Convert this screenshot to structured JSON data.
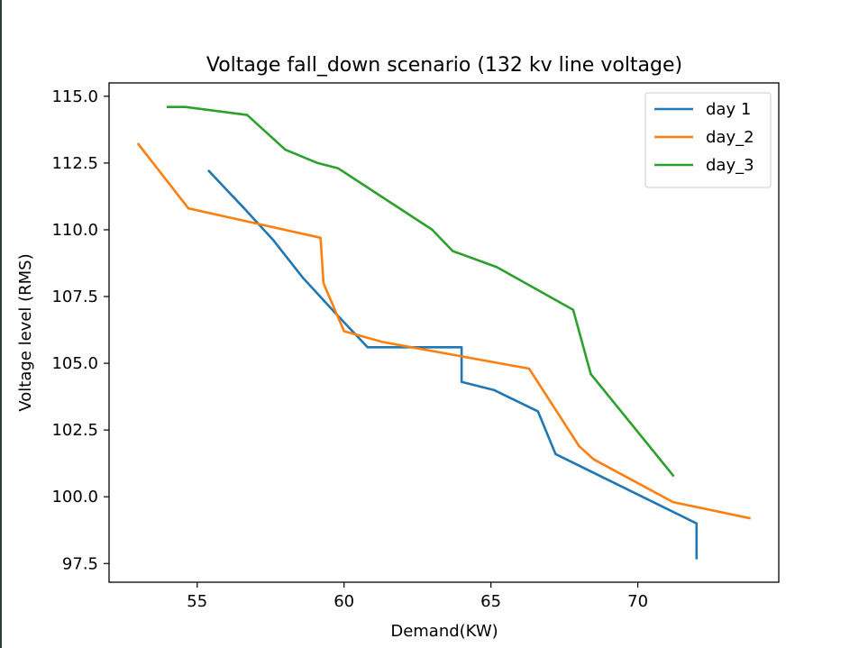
{
  "chart_data": {
    "type": "line",
    "title": "Voltage fall_down scenario (132 kv line voltage)",
    "xlabel": "Demand(KW)",
    "ylabel": "Voltage level (RMS)",
    "xlim": [
      52.0,
      74.8
    ],
    "ylim": [
      96.8,
      115.5
    ],
    "xticks": [
      55,
      60,
      65,
      70
    ],
    "yticks": [
      97.5,
      100.0,
      102.5,
      105.0,
      107.5,
      110.0,
      112.5,
      115.0
    ],
    "grid": false,
    "legend": "top-right",
    "series": [
      {
        "name": "day 1",
        "color": "#1f77b4",
        "points": [
          [
            55.4,
            112.2
          ],
          [
            56.6,
            110.8
          ],
          [
            57.6,
            109.6
          ],
          [
            58.6,
            108.2
          ],
          [
            59.6,
            107.0
          ],
          [
            60.8,
            105.6
          ],
          [
            64.0,
            105.6
          ],
          [
            64.0,
            104.3
          ],
          [
            65.1,
            104.0
          ],
          [
            66.6,
            103.2
          ],
          [
            67.2,
            101.6
          ],
          [
            72.0,
            99.0
          ],
          [
            72.0,
            97.7
          ]
        ]
      },
      {
        "name": "day_2",
        "color": "#ff7f0e",
        "points": [
          [
            53.0,
            113.2
          ],
          [
            54.7,
            110.8
          ],
          [
            59.2,
            109.7
          ],
          [
            59.3,
            108.0
          ],
          [
            60.0,
            106.2
          ],
          [
            61.3,
            105.8
          ],
          [
            66.3,
            104.8
          ],
          [
            68.0,
            101.9
          ],
          [
            68.5,
            101.4
          ],
          [
            71.2,
            99.8
          ],
          [
            73.8,
            99.2
          ]
        ]
      },
      {
        "name": "day_3",
        "color": "#2ca02c",
        "points": [
          [
            54.0,
            114.6
          ],
          [
            54.6,
            114.6
          ],
          [
            56.7,
            114.3
          ],
          [
            58.0,
            113.0
          ],
          [
            59.1,
            112.5
          ],
          [
            59.8,
            112.3
          ],
          [
            63.0,
            110.0
          ],
          [
            63.7,
            109.2
          ],
          [
            65.2,
            108.6
          ],
          [
            67.8,
            107.0
          ],
          [
            68.4,
            104.6
          ],
          [
            71.2,
            100.8
          ]
        ]
      }
    ]
  }
}
